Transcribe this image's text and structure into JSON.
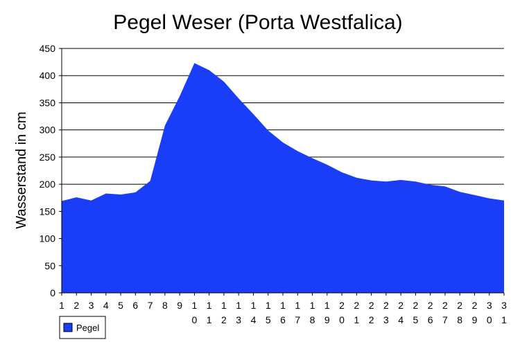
{
  "chart_data": {
    "type": "area",
    "title": "Pegel Weser (Porta Westfalica)",
    "ylabel": "Wasserstand in cm",
    "xlabel": "",
    "ylim": [
      0,
      450
    ],
    "yticks": [
      0,
      50,
      100,
      150,
      200,
      250,
      300,
      350,
      400,
      450
    ],
    "grid": true,
    "legend_position": "bottom-left",
    "categories": [
      "1",
      "2",
      "3",
      "4",
      "5",
      "6",
      "7",
      "8",
      "9",
      "10",
      "11",
      "12",
      "13",
      "14",
      "15",
      "16",
      "17",
      "18",
      "19",
      "20",
      "21",
      "22",
      "23",
      "24",
      "25",
      "26",
      "27",
      "28",
      "29",
      "30",
      "31"
    ],
    "series": [
      {
        "name": "Pegel",
        "color": "#1a3ef7",
        "values": [
          169,
          176,
          170,
          183,
          181,
          185,
          206,
          308,
          362,
          423,
          410,
          389,
          358,
          329,
          299,
          277,
          261,
          248,
          236,
          222,
          212,
          207,
          205,
          208,
          205,
          199,
          196,
          186,
          180,
          174,
          170
        ]
      }
    ]
  }
}
